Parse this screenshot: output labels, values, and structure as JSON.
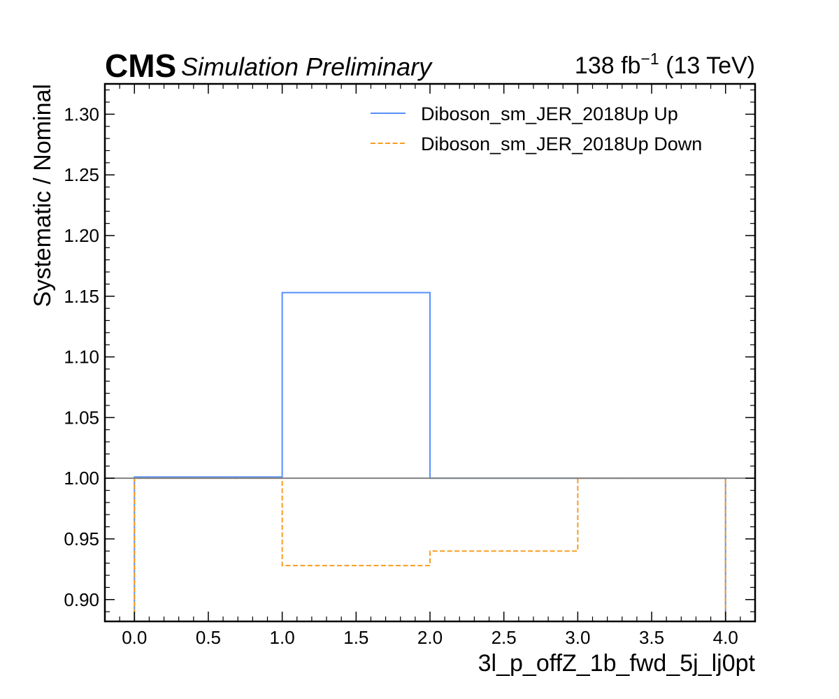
{
  "header": {
    "experiment": "CMS",
    "status": "Simulation Preliminary",
    "lumi_value": "138 fb",
    "lumi_exponent": "−1",
    "energy": " (13 TeV)"
  },
  "chart_data": {
    "type": "line",
    "drawstyle": "steps",
    "xlabel": "3l_p_offZ_1b_fwd_5j_lj0pt",
    "ylabel": "Systematic / Nominal",
    "xlim": [
      -0.2,
      4.2
    ],
    "ylim": [
      0.882,
      1.325
    ],
    "x_ticks": [
      0.0,
      0.5,
      1.0,
      1.5,
      2.0,
      2.5,
      3.0,
      3.5,
      4.0
    ],
    "x_tick_labels": [
      "0.0",
      "0.5",
      "1.0",
      "1.5",
      "2.0",
      "2.5",
      "3.0",
      "3.5",
      "4.0"
    ],
    "y_ticks": [
      0.9,
      0.95,
      1.0,
      1.05,
      1.1,
      1.15,
      1.2,
      1.25,
      1.3
    ],
    "y_tick_labels": [
      "0.90",
      "0.95",
      "1.00",
      "1.05",
      "1.10",
      "1.15",
      "1.20",
      "1.25",
      "1.30"
    ],
    "bin_edges": [
      0,
      1,
      2,
      3,
      4
    ],
    "series": [
      {
        "name": "Diboson_sm_JER_2018Up Up",
        "values": [
          1.001,
          1.153,
          1.0,
          1.0
        ],
        "color": "#5790fc",
        "dash": "solid"
      },
      {
        "name": "Diboson_sm_JER_2018Up Down",
        "values": [
          1.0,
          0.928,
          0.94,
          1.0
        ],
        "color": "#f89c20",
        "dash": "dashed"
      }
    ],
    "reference_line": {
      "y": 1.0,
      "color": "#808080"
    },
    "legend_position": "top-right",
    "grid": false
  }
}
